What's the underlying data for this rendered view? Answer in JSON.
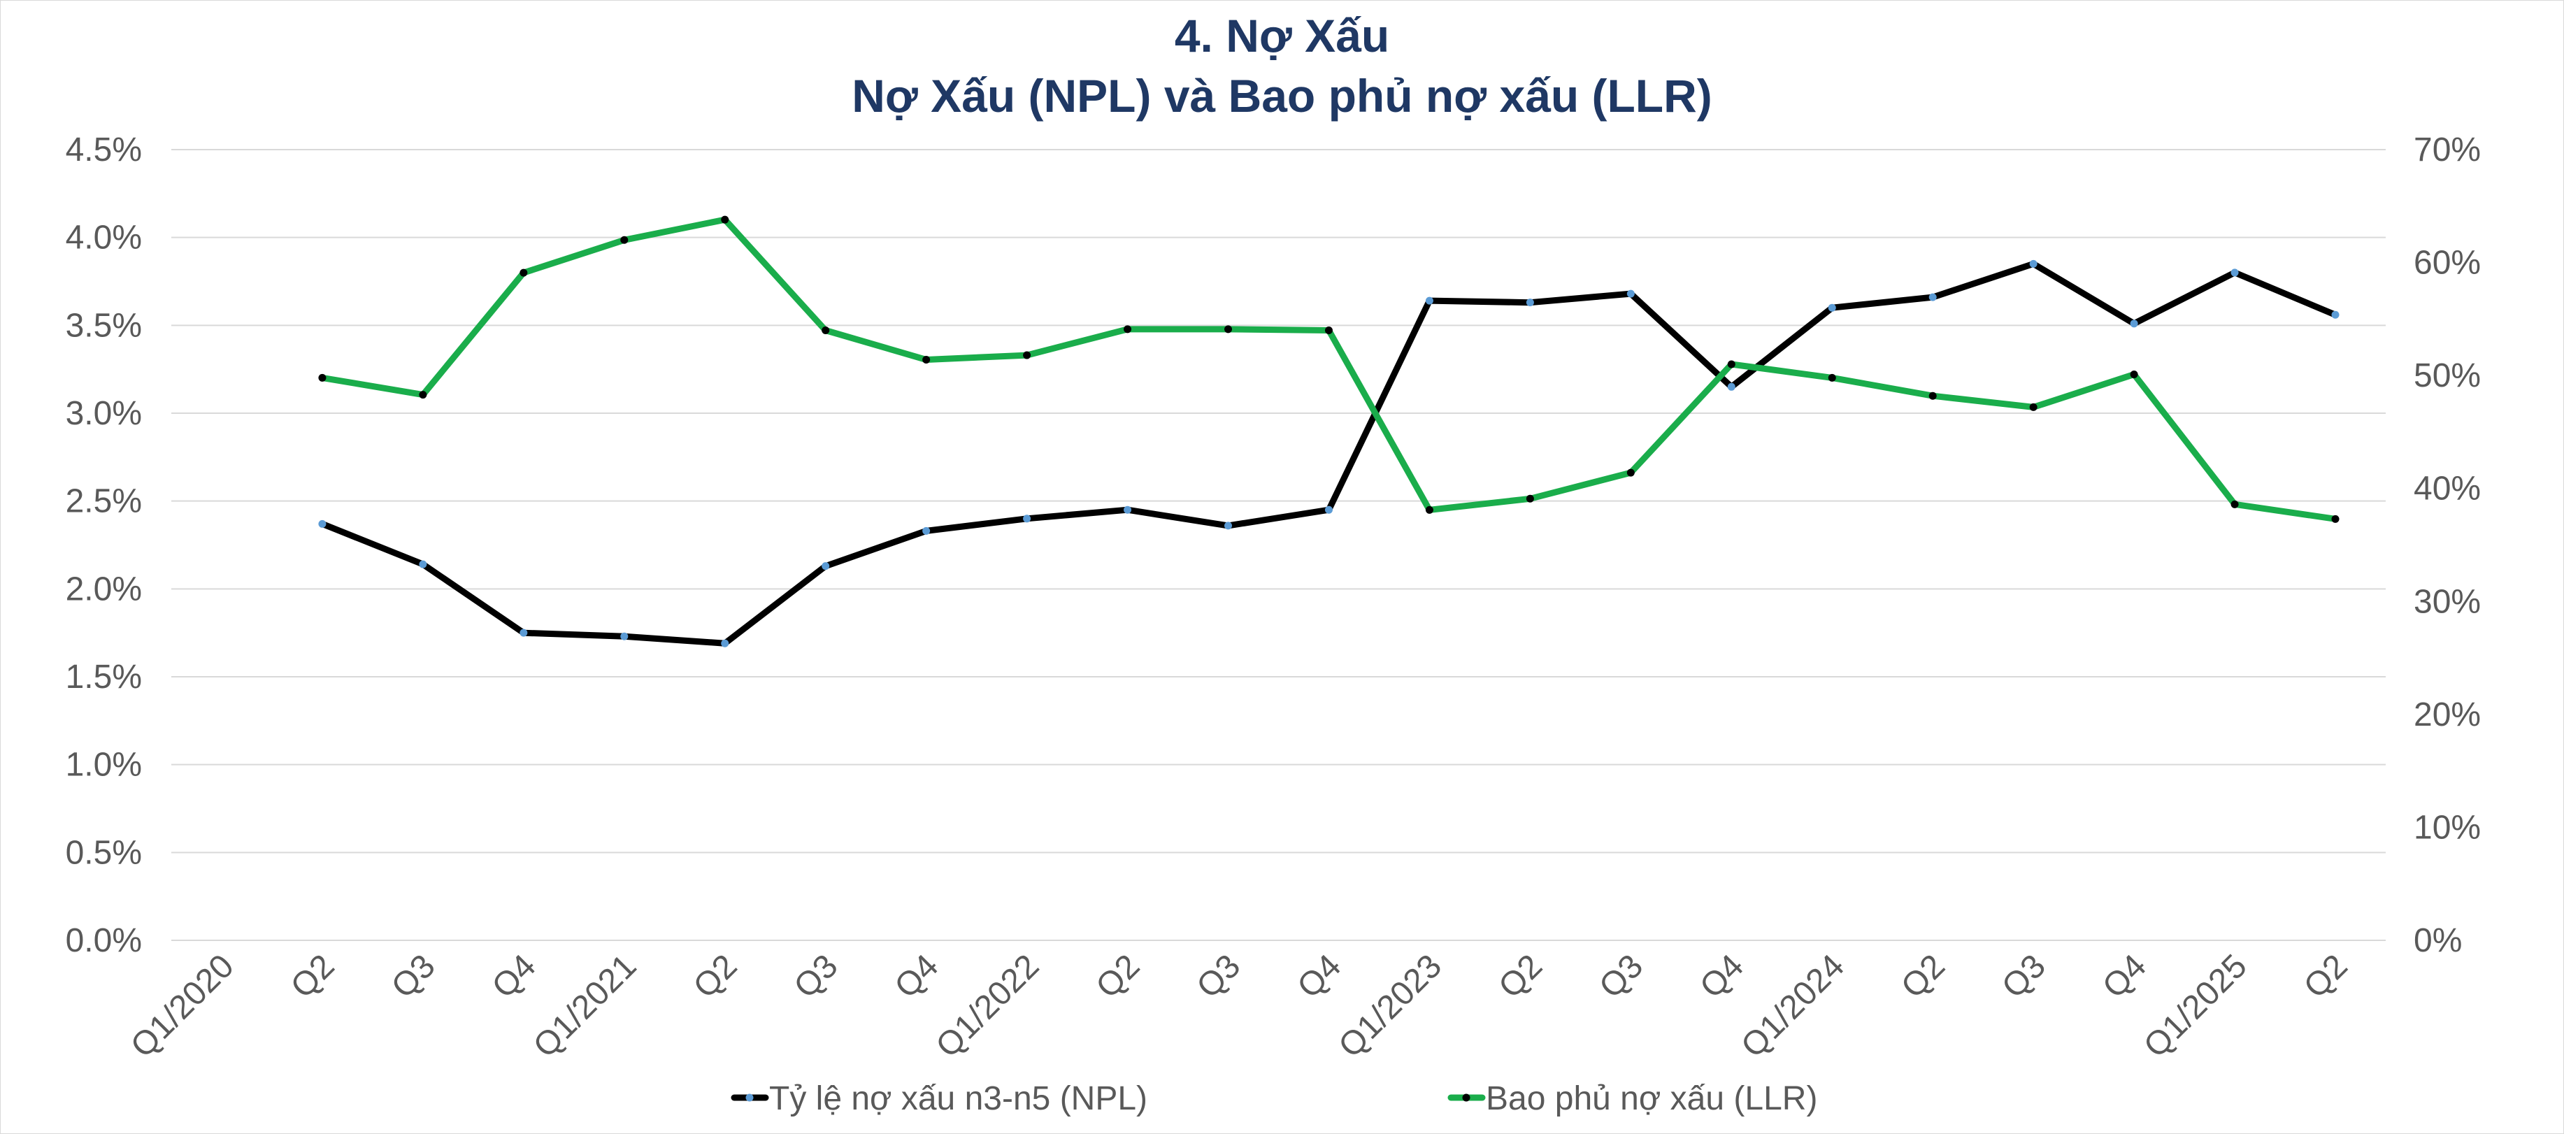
{
  "chart_data": {
    "type": "line",
    "title": "4. Nợ Xấu",
    "subtitle": "Nợ Xấu (NPL) và Bao phủ nợ xấu (LLR)",
    "categories": [
      "Q1/2020",
      "Q2",
      "Q3",
      "Q4",
      "Q1/2021",
      "Q2",
      "Q3",
      "Q4",
      "Q1/2022",
      "Q2",
      "Q3",
      "Q4",
      "Q1/2023",
      "Q2",
      "Q3",
      "Q4",
      "Q1/2024",
      "Q2",
      "Q3",
      "Q4",
      "Q1/2025",
      "Q2"
    ],
    "y_left": {
      "min": 0,
      "max": 0.045,
      "step": 0.005,
      "ticks": [
        "0.0%",
        "0.5%",
        "1.0%",
        "1.5%",
        "2.0%",
        "2.5%",
        "3.0%",
        "3.5%",
        "4.0%",
        "4.5%"
      ]
    },
    "y_right": {
      "min": 0,
      "max": 0.7,
      "step": 0.1,
      "ticks": [
        "0%",
        "10%",
        "20%",
        "30%",
        "40%",
        "50%",
        "60%",
        "70%"
      ]
    },
    "grid": true,
    "legend_position": "bottom",
    "series": [
      {
        "name": "Tỷ lệ nợ xấu n3-n5 (NPL)",
        "axis": "left",
        "color": "#000000",
        "marker_color": "#5b9bd5",
        "values": [
          null,
          0.0237,
          0.0214,
          0.0175,
          0.0173,
          0.0169,
          0.0213,
          0.0233,
          0.024,
          0.0245,
          0.0236,
          0.0245,
          0.0364,
          0.0363,
          0.0368,
          0.0315,
          0.036,
          0.0366,
          0.0385,
          0.0351,
          0.038,
          0.0356
        ]
      },
      {
        "name": "Bao phủ nợ xấu (LLR)",
        "axis": "right",
        "color": "#1aad4b",
        "marker_color": "#000000",
        "values": [
          null,
          0.498,
          0.483,
          0.591,
          0.62,
          0.638,
          0.54,
          0.514,
          0.518,
          0.541,
          0.541,
          0.54,
          0.381,
          0.391,
          0.414,
          0.51,
          0.498,
          0.482,
          0.472,
          0.501,
          0.386,
          0.373
        ]
      }
    ]
  }
}
